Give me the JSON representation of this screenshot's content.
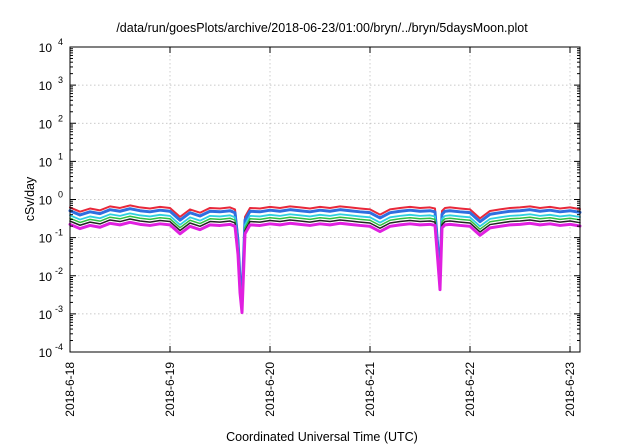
{
  "chart_data": {
    "type": "line",
    "title": "/data/run/goesPlots/archive/2018-06-23/01:00/bryn/../bryn/5daysMoon.plot",
    "xlabel": "Coordinated Universal Time (UTC)",
    "ylabel": "cSv/day",
    "yscale": "log",
    "ylim": [
      0.0001,
      10000
    ],
    "xlim": [
      0,
      5.1
    ],
    "grid": true,
    "x_ticks": [
      {
        "value": 0,
        "label": "2018-6-18"
      },
      {
        "value": 1,
        "label": "2018-6-19"
      },
      {
        "value": 2,
        "label": "2018-6-20"
      },
      {
        "value": 3,
        "label": "2018-6-21"
      },
      {
        "value": 4,
        "label": "2018-6-22"
      },
      {
        "value": 5,
        "label": "2018-6-23"
      }
    ],
    "y_ticks": [
      {
        "value": 0.0001,
        "base": "10",
        "exp": "-4"
      },
      {
        "value": 0.001,
        "base": "10",
        "exp": "-3"
      },
      {
        "value": 0.01,
        "base": "10",
        "exp": "-2"
      },
      {
        "value": 0.1,
        "base": "10",
        "exp": "-1"
      },
      {
        "value": 1,
        "base": "10",
        "exp": "0"
      },
      {
        "value": 10,
        "base": "10",
        "exp": "1"
      },
      {
        "value": 100,
        "base": "10",
        "exp": "2"
      },
      {
        "value": 1000,
        "base": "10",
        "exp": "3"
      },
      {
        "value": 10000,
        "base": "10",
        "exp": "4"
      }
    ],
    "series": [
      {
        "color": "#e8283a",
        "scale": 1.0,
        "thick": 2.0
      },
      {
        "color": "#2f6fe0",
        "scale": 0.82,
        "thick": 3.0
      },
      {
        "color": "#2fd0e0",
        "scale": 0.62,
        "thick": 1.8
      },
      {
        "color": "#30c040",
        "scale": 0.52,
        "thick": 1.5
      },
      {
        "color": "#222222",
        "scale": 0.44,
        "thick": 1.5
      },
      {
        "color": "#e020e0",
        "scale": 0.36,
        "thick": 3.0
      }
    ],
    "x": [
      0.0,
      0.1,
      0.2,
      0.3,
      0.4,
      0.5,
      0.6,
      0.7,
      0.8,
      0.9,
      1.0,
      1.1,
      1.2,
      1.3,
      1.4,
      1.5,
      1.6,
      1.65,
      1.68,
      1.7,
      1.72,
      1.75,
      1.8,
      1.9,
      2.0,
      2.1,
      2.2,
      2.3,
      2.4,
      2.5,
      2.6,
      2.7,
      2.8,
      2.9,
      3.0,
      3.1,
      3.2,
      3.3,
      3.4,
      3.5,
      3.6,
      3.65,
      3.68,
      3.7,
      3.72,
      3.75,
      3.8,
      3.9,
      4.0,
      4.1,
      4.2,
      4.3,
      4.4,
      4.5,
      4.6,
      4.7,
      4.8,
      4.9,
      5.0,
      5.1
    ],
    "values": [
      0.62,
      0.48,
      0.58,
      0.52,
      0.66,
      0.6,
      0.7,
      0.62,
      0.58,
      0.64,
      0.6,
      0.35,
      0.55,
      0.45,
      0.6,
      0.58,
      0.62,
      0.55,
      0.1,
      0.01,
      0.003,
      0.35,
      0.6,
      0.58,
      0.64,
      0.6,
      0.66,
      0.62,
      0.58,
      0.64,
      0.6,
      0.66,
      0.62,
      0.58,
      0.55,
      0.4,
      0.55,
      0.6,
      0.64,
      0.6,
      0.62,
      0.58,
      0.06,
      0.012,
      0.5,
      0.6,
      0.62,
      0.58,
      0.55,
      0.32,
      0.5,
      0.55,
      0.6,
      0.62,
      0.66,
      0.6,
      0.64,
      0.58,
      0.62,
      0.56
    ]
  }
}
